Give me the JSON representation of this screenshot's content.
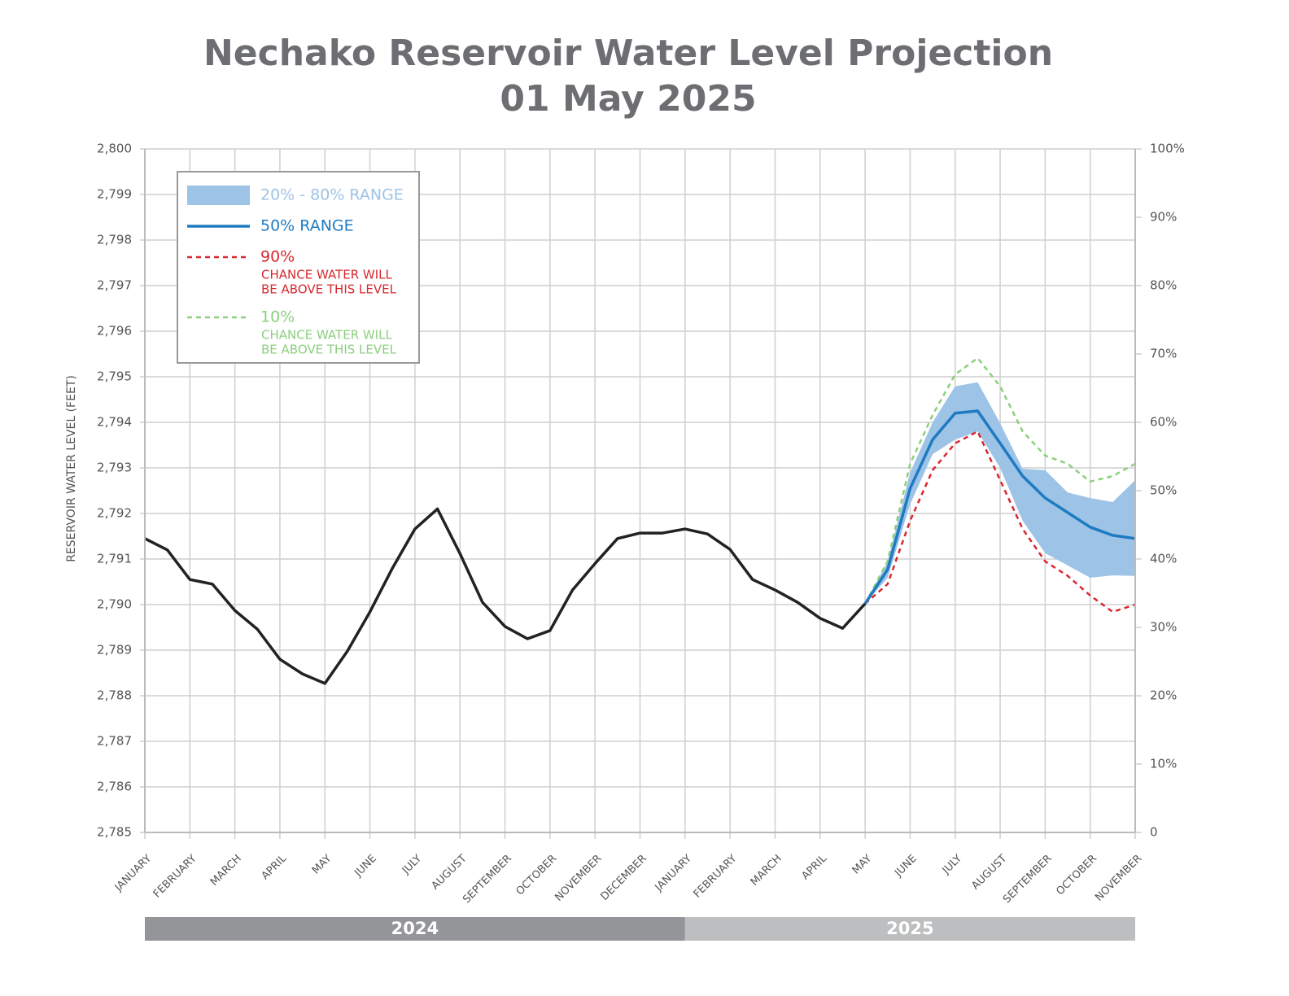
{
  "chart_data": {
    "type": "line",
    "title": "Nechako Reservoir Water Level Projection",
    "subtitle": "01 May 2025",
    "ylabel": "RESERVOIR WATER LEVEL (FEET)",
    "categories": [
      "JANUARY",
      null,
      "FEBRUARY",
      null,
      "MARCH",
      null,
      "APRIL",
      null,
      "MAY",
      null,
      "JUNE",
      null,
      "JULY",
      null,
      "AUGUST",
      null,
      "SEPTEMBER",
      null,
      "OCTOBER",
      null,
      "NOVEMBER",
      null,
      "DECEMBER",
      null,
      "JANUARY",
      null,
      "FEBRUARY",
      null,
      "MARCH",
      null,
      "APRIL",
      null,
      "MAY",
      null,
      "JUNE",
      null,
      "JULY",
      null,
      "AUGUST",
      null,
      "SEPTEMBER",
      null,
      "OCTOBER",
      null,
      "NOVEMBER"
    ],
    "year_groups": [
      "2024",
      "2025"
    ],
    "series": [
      {
        "name": "20% - 80% RANGE",
        "kind": "band",
        "color": "#9dc3e6",
        "upper": [
          null,
          null,
          null,
          null,
          null,
          null,
          null,
          null,
          null,
          null,
          null,
          null,
          null,
          null,
          null,
          null,
          null,
          null,
          null,
          null,
          null,
          null,
          null,
          null,
          null,
          null,
          null,
          null,
          null,
          null,
          null,
          null,
          2790.02,
          2790.95,
          2792.9,
          2794.0,
          2794.79,
          2794.88,
          2793.98,
          2792.98,
          2792.95,
          2792.46,
          2792.34,
          2792.25,
          2792.73
        ],
        "lower": [
          null,
          null,
          null,
          null,
          null,
          null,
          null,
          null,
          null,
          null,
          null,
          null,
          null,
          null,
          null,
          null,
          null,
          null,
          null,
          null,
          null,
          null,
          null,
          null,
          null,
          null,
          null,
          null,
          null,
          null,
          null,
          null,
          2790.02,
          2790.59,
          2792.2,
          2793.3,
          2793.62,
          2793.8,
          2793.0,
          2791.84,
          2791.13,
          2790.86,
          2790.59,
          2790.64,
          2790.63
        ]
      },
      {
        "name": "50% RANGE",
        "color": "#1f7bc1",
        "values": [
          null,
          null,
          null,
          null,
          null,
          null,
          null,
          null,
          null,
          null,
          null,
          null,
          null,
          null,
          null,
          null,
          null,
          null,
          null,
          null,
          null,
          null,
          null,
          null,
          null,
          null,
          null,
          null,
          null,
          null,
          null,
          null,
          2790.02,
          2790.77,
          2792.55,
          2793.62,
          2794.2,
          2794.25,
          2793.54,
          2792.82,
          2792.34,
          2792.02,
          2791.7,
          2791.52,
          2791.45
        ]
      },
      {
        "name": "90%",
        "note": [
          "CHANCE WATER WILL",
          "BE ABOVE THIS LEVEL"
        ],
        "color": "#d7282f",
        "dashed": true,
        "values": [
          null,
          null,
          null,
          null,
          null,
          null,
          null,
          null,
          null,
          null,
          null,
          null,
          null,
          null,
          null,
          null,
          null,
          null,
          null,
          null,
          null,
          null,
          null,
          null,
          null,
          null,
          null,
          null,
          null,
          null,
          null,
          null,
          2790.02,
          2790.45,
          2791.84,
          2792.95,
          2793.54,
          2793.8,
          2792.73,
          2791.66,
          2790.95,
          2790.63,
          2790.2,
          2789.84,
          2790.0
        ]
      },
      {
        "name": "10%",
        "note": [
          "CHANCE WATER WILL",
          "BE ABOVE THIS LEVEL"
        ],
        "color": "#8ccf7e",
        "dashed": true,
        "values": [
          null,
          null,
          null,
          null,
          null,
          null,
          null,
          null,
          null,
          null,
          null,
          null,
          null,
          null,
          null,
          null,
          null,
          null,
          null,
          null,
          null,
          null,
          null,
          null,
          null,
          null,
          null,
          null,
          null,
          null,
          null,
          null,
          2790.02,
          2790.95,
          2793.09,
          2794.16,
          2795.05,
          2795.41,
          2794.79,
          2793.8,
          2793.27,
          2793.09,
          2792.7,
          2792.82,
          2793.09
        ]
      },
      {
        "color": "#222222",
        "values": [
          2791.45,
          2791.2,
          2790.55,
          2790.45,
          2789.87,
          2789.46,
          2788.8,
          2788.48,
          2788.27,
          2788.98,
          2789.84,
          2790.8,
          2791.66,
          2792.1,
          2791.12,
          2790.05,
          2789.52,
          2789.25,
          2789.43,
          2790.32,
          2790.9,
          2791.45,
          2791.57,
          2791.57,
          2791.66,
          2791.55,
          2791.21,
          2790.55,
          2790.32,
          2790.05,
          2789.7,
          2789.48,
          2790.02,
          null,
          null,
          null,
          null,
          null,
          null,
          null,
          null,
          null,
          null,
          null,
          null
        ]
      }
    ],
    "ylim": [
      2785,
      2800
    ],
    "yticks": [
      {
        "value": 2785,
        "label": "2,785"
      },
      {
        "value": 2786,
        "label": "2,786"
      },
      {
        "value": 2787,
        "label": "2,787"
      },
      {
        "value": 2788,
        "label": "2,788"
      },
      {
        "value": 2789,
        "label": "2,789"
      },
      {
        "value": 2790,
        "label": "2,790"
      },
      {
        "value": 2791,
        "label": "2,791"
      },
      {
        "value": 2792,
        "label": "2,792"
      },
      {
        "value": 2793,
        "label": "2,793"
      },
      {
        "value": 2794,
        "label": "2,794"
      },
      {
        "value": 2795,
        "label": "2,795"
      },
      {
        "value": 2796,
        "label": "2,796"
      },
      {
        "value": 2797,
        "label": "2,797"
      },
      {
        "value": 2798,
        "label": "2,798"
      },
      {
        "value": 2799,
        "label": "2,799"
      },
      {
        "value": 2800,
        "label": "2,800"
      }
    ],
    "y2lim": [
      0,
      100
    ],
    "y2ticks": [
      0,
      {
        "value": 10,
        "label": "10%"
      },
      {
        "value": 20,
        "label": "20%"
      },
      {
        "value": 30,
        "label": "30%"
      },
      {
        "value": 40,
        "label": "40%"
      },
      {
        "value": 50,
        "label": "50%"
      },
      {
        "value": 60,
        "label": "60%"
      },
      {
        "value": 70,
        "label": "70%"
      },
      {
        "value": 80,
        "label": "80%"
      },
      {
        "value": 90,
        "label": "90%"
      },
      {
        "value": 100,
        "label": "100%"
      }
    ],
    "grid": true,
    "legend": "upper left"
  }
}
